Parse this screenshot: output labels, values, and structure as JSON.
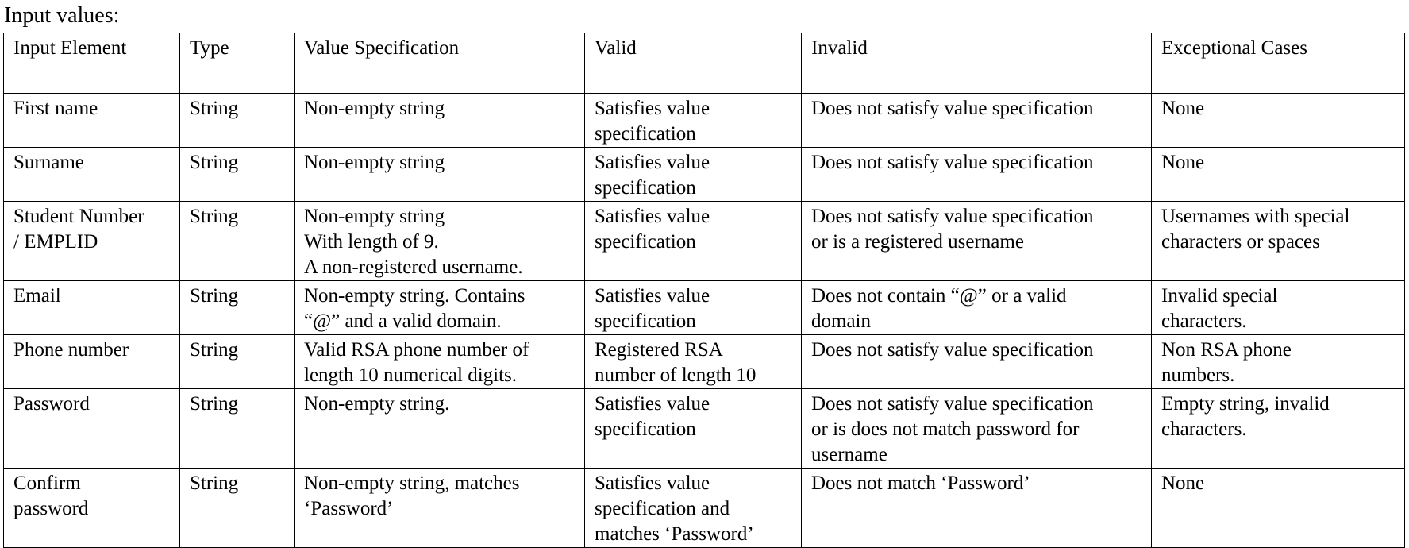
{
  "page": {
    "title": "Input values:"
  },
  "table": {
    "columns": [
      "Input Element",
      "Type",
      "Value Specification",
      "Valid",
      "Invalid",
      "Exceptional Cases"
    ],
    "rows": [
      [
        [
          "First name"
        ],
        [
          "String"
        ],
        [
          "Non-empty string"
        ],
        [
          "Satisfies value",
          "specification"
        ],
        [
          "Does not satisfy value specification"
        ],
        [
          "None"
        ]
      ],
      [
        [
          "Surname"
        ],
        [
          "String"
        ],
        [
          "Non-empty string"
        ],
        [
          "Satisfies value",
          "specification"
        ],
        [
          "Does not satisfy value specification"
        ],
        [
          "None"
        ]
      ],
      [
        [
          "Student Number",
          "/ EMPLID"
        ],
        [
          "String"
        ],
        [
          "Non-empty string",
          "With length of 9.",
          "A non-registered username."
        ],
        [
          "Satisfies value",
          "specification"
        ],
        [
          "Does not satisfy value specification",
          "or is a registered username"
        ],
        [
          "Usernames with special",
          "characters or spaces"
        ]
      ],
      [
        [
          "Email"
        ],
        [
          "String"
        ],
        [
          "Non-empty string. Contains",
          "“@” and a valid domain."
        ],
        [
          "Satisfies value",
          "specification"
        ],
        [
          "Does not contain “@” or a valid",
          "domain"
        ],
        [
          "Invalid special",
          "characters."
        ]
      ],
      [
        [
          "Phone number"
        ],
        [
          "String"
        ],
        [
          "Valid RSA phone number of",
          "length 10 numerical digits."
        ],
        [
          "Registered RSA",
          "number of length 10"
        ],
        [
          "Does not satisfy value specification"
        ],
        [
          "Non RSA phone",
          "numbers."
        ]
      ],
      [
        [
          "Password"
        ],
        [
          "String"
        ],
        [
          "Non-empty string."
        ],
        [
          "Satisfies value",
          "specification"
        ],
        [
          "Does not satisfy value specification",
          "or is does not match password for",
          "username"
        ],
        [
          "Empty string, invalid",
          "characters."
        ]
      ],
      [
        [
          "Confirm",
          "password"
        ],
        [
          "String"
        ],
        [
          "Non-empty string, matches",
          "‘Password’"
        ],
        [
          "Satisfies value",
          "specification and",
          "matches ‘Password’"
        ],
        [
          "Does not match ‘Password’"
        ],
        [
          "None"
        ]
      ]
    ]
  }
}
